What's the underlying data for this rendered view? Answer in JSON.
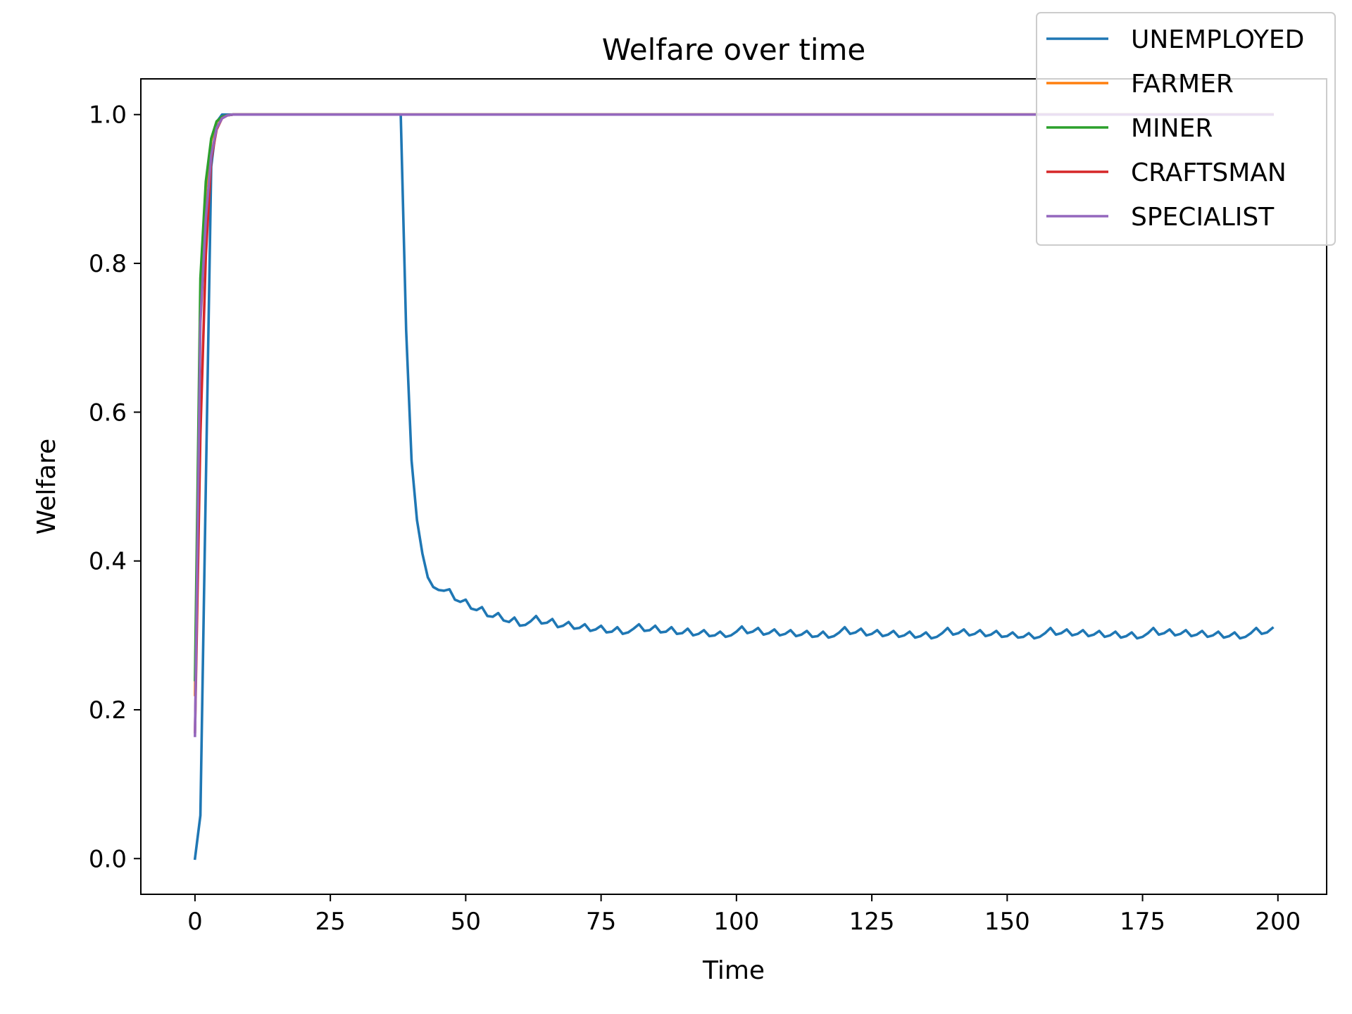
{
  "chart_data": {
    "type": "line",
    "title": "Welfare over time",
    "xlabel": "Time",
    "ylabel": "Welfare",
    "xlim": [
      -10,
      209
    ],
    "ylim": [
      -0.048,
      1.048
    ],
    "xticks": [
      0,
      25,
      50,
      75,
      100,
      125,
      150,
      175,
      200
    ],
    "yticks": [
      0.0,
      0.2,
      0.4,
      0.6,
      0.8,
      1.0
    ],
    "xtick_labels": [
      "0",
      "25",
      "50",
      "75",
      "100",
      "125",
      "150",
      "175",
      "200"
    ],
    "ytick_labels": [
      "0.0",
      "0.2",
      "0.4",
      "0.6",
      "0.8",
      "1.0"
    ],
    "grid": false,
    "legend": "upper-right",
    "series": [
      {
        "name": "UNEMPLOYED",
        "color": "#1f77b4",
        "points": [
          [
            0,
            0.0
          ],
          [
            1,
            0.058
          ],
          [
            2,
            0.5
          ],
          [
            3,
            0.93
          ],
          [
            4,
            0.99
          ],
          [
            5,
            1.0
          ],
          [
            37,
            1.0
          ],
          [
            38,
            1.0
          ],
          [
            39,
            0.71
          ],
          [
            40,
            0.535
          ],
          [
            41,
            0.455
          ],
          [
            42,
            0.41
          ],
          [
            43,
            0.378
          ],
          [
            44,
            0.365
          ],
          [
            45,
            0.361
          ],
          [
            46,
            0.36
          ],
          [
            47,
            0.362
          ],
          [
            48,
            0.348
          ],
          [
            49,
            0.345
          ],
          [
            50,
            0.348
          ],
          [
            51,
            0.336
          ],
          [
            52,
            0.334
          ],
          [
            53,
            0.338
          ],
          [
            54,
            0.326
          ],
          [
            55,
            0.325
          ],
          [
            56,
            0.33
          ],
          [
            57,
            0.32
          ],
          [
            58,
            0.318
          ],
          [
            59,
            0.324
          ],
          [
            60,
            0.313
          ],
          [
            61,
            0.314
          ],
          [
            62,
            0.319
          ],
          [
            63,
            0.326
          ],
          [
            64,
            0.316
          ],
          [
            65,
            0.317
          ],
          [
            66,
            0.322
          ],
          [
            67,
            0.311
          ],
          [
            68,
            0.313
          ],
          [
            69,
            0.318
          ],
          [
            70,
            0.309
          ],
          [
            71,
            0.31
          ],
          [
            72,
            0.315
          ],
          [
            73,
            0.306
          ],
          [
            74,
            0.308
          ],
          [
            75,
            0.313
          ],
          [
            76,
            0.304
          ],
          [
            77,
            0.305
          ],
          [
            78,
            0.311
          ],
          [
            79,
            0.302
          ],
          [
            80,
            0.304
          ],
          [
            81,
            0.309
          ],
          [
            82,
            0.315
          ],
          [
            83,
            0.306
          ],
          [
            84,
            0.307
          ],
          [
            85,
            0.313
          ],
          [
            86,
            0.304
          ],
          [
            87,
            0.305
          ],
          [
            88,
            0.311
          ],
          [
            89,
            0.302
          ],
          [
            90,
            0.303
          ],
          [
            91,
            0.309
          ],
          [
            92,
            0.3
          ],
          [
            93,
            0.302
          ],
          [
            94,
            0.307
          ],
          [
            95,
            0.299
          ],
          [
            96,
            0.3
          ],
          [
            97,
            0.305
          ],
          [
            98,
            0.298
          ],
          [
            99,
            0.3
          ],
          [
            100,
            0.305
          ],
          [
            101,
            0.312
          ],
          [
            102,
            0.303
          ],
          [
            103,
            0.305
          ],
          [
            104,
            0.31
          ],
          [
            105,
            0.301
          ],
          [
            106,
            0.303
          ],
          [
            107,
            0.308
          ],
          [
            108,
            0.3
          ],
          [
            109,
            0.302
          ],
          [
            110,
            0.307
          ],
          [
            111,
            0.299
          ],
          [
            112,
            0.301
          ],
          [
            113,
            0.306
          ],
          [
            114,
            0.298
          ],
          [
            115,
            0.299
          ],
          [
            116,
            0.305
          ],
          [
            117,
            0.297
          ],
          [
            118,
            0.299
          ],
          [
            119,
            0.304
          ],
          [
            120,
            0.311
          ],
          [
            121,
            0.302
          ],
          [
            122,
            0.304
          ],
          [
            123,
            0.309
          ],
          [
            124,
            0.3
          ],
          [
            125,
            0.302
          ],
          [
            126,
            0.307
          ],
          [
            127,
            0.299
          ],
          [
            128,
            0.301
          ],
          [
            129,
            0.306
          ],
          [
            130,
            0.298
          ],
          [
            131,
            0.3
          ],
          [
            132,
            0.305
          ],
          [
            133,
            0.297
          ],
          [
            134,
            0.299
          ],
          [
            135,
            0.304
          ],
          [
            136,
            0.296
          ],
          [
            137,
            0.298
          ],
          [
            138,
            0.303
          ],
          [
            139,
            0.31
          ],
          [
            140,
            0.301
          ],
          [
            141,
            0.303
          ],
          [
            142,
            0.308
          ],
          [
            143,
            0.3
          ],
          [
            144,
            0.302
          ],
          [
            145,
            0.307
          ],
          [
            146,
            0.299
          ],
          [
            147,
            0.301
          ],
          [
            148,
            0.306
          ],
          [
            149,
            0.298
          ],
          [
            150,
            0.299
          ],
          [
            151,
            0.304
          ],
          [
            152,
            0.297
          ],
          [
            153,
            0.298
          ],
          [
            154,
            0.303
          ],
          [
            155,
            0.296
          ],
          [
            156,
            0.298
          ],
          [
            157,
            0.303
          ],
          [
            158,
            0.31
          ],
          [
            159,
            0.301
          ],
          [
            160,
            0.303
          ],
          [
            161,
            0.308
          ],
          [
            162,
            0.3
          ],
          [
            163,
            0.302
          ],
          [
            164,
            0.307
          ],
          [
            165,
            0.299
          ],
          [
            166,
            0.301
          ],
          [
            167,
            0.306
          ],
          [
            168,
            0.298
          ],
          [
            169,
            0.3
          ],
          [
            170,
            0.305
          ],
          [
            171,
            0.297
          ],
          [
            172,
            0.299
          ],
          [
            173,
            0.304
          ],
          [
            174,
            0.296
          ],
          [
            175,
            0.298
          ],
          [
            176,
            0.303
          ],
          [
            177,
            0.31
          ],
          [
            178,
            0.301
          ],
          [
            179,
            0.303
          ],
          [
            180,
            0.308
          ],
          [
            181,
            0.3
          ],
          [
            182,
            0.302
          ],
          [
            183,
            0.307
          ],
          [
            184,
            0.299
          ],
          [
            185,
            0.301
          ],
          [
            186,
            0.306
          ],
          [
            187,
            0.298
          ],
          [
            188,
            0.3
          ],
          [
            189,
            0.305
          ],
          [
            190,
            0.297
          ],
          [
            191,
            0.299
          ],
          [
            192,
            0.304
          ],
          [
            193,
            0.296
          ],
          [
            194,
            0.298
          ],
          [
            195,
            0.303
          ],
          [
            196,
            0.31
          ],
          [
            197,
            0.302
          ],
          [
            198,
            0.304
          ],
          [
            199,
            0.31
          ]
        ]
      },
      {
        "name": "FARMER",
        "color": "#ff7f0e",
        "points": [
          [
            0,
            0.22
          ],
          [
            1,
            0.74
          ],
          [
            2,
            0.9
          ],
          [
            3,
            0.965
          ],
          [
            4,
            0.99
          ],
          [
            5,
            0.997
          ],
          [
            6,
            0.999
          ],
          [
            7,
            1.0
          ],
          [
            199,
            1.0
          ]
        ]
      },
      {
        "name": "MINER",
        "color": "#2ca02c",
        "points": [
          [
            0,
            0.24
          ],
          [
            1,
            0.78
          ],
          [
            2,
            0.91
          ],
          [
            3,
            0.968
          ],
          [
            4,
            0.991
          ],
          [
            5,
            0.997
          ],
          [
            6,
            0.999
          ],
          [
            7,
            1.0
          ],
          [
            199,
            1.0
          ]
        ]
      },
      {
        "name": "CRAFTSMAN",
        "color": "#d62728",
        "points": [
          [
            0,
            0.17
          ],
          [
            1,
            0.57
          ],
          [
            2,
            0.81
          ],
          [
            3,
            0.94
          ],
          [
            4,
            0.98
          ],
          [
            5,
            0.995
          ],
          [
            6,
            0.999
          ],
          [
            7,
            1.0
          ],
          [
            199,
            1.0
          ]
        ]
      },
      {
        "name": "SPECIALIST",
        "color": "#9467bd",
        "points": [
          [
            0,
            0.165
          ],
          [
            1,
            0.72
          ],
          [
            2,
            0.86
          ],
          [
            3,
            0.945
          ],
          [
            4,
            0.982
          ],
          [
            5,
            0.995
          ],
          [
            6,
            0.999
          ],
          [
            7,
            1.0
          ],
          [
            199,
            1.0
          ]
        ]
      }
    ]
  }
}
